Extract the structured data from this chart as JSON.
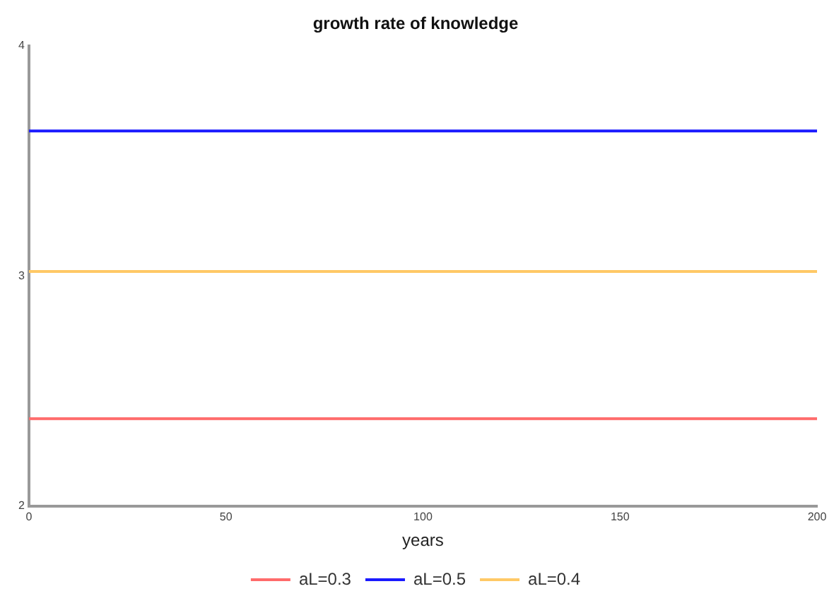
{
  "chart_data": {
    "type": "line",
    "title": "growth rate of knowledge",
    "xlabel": "years",
    "x": [
      0,
      200
    ],
    "series": [
      {
        "name": "aL=0.3",
        "color": "#ff6b6b",
        "values": [
          2.38,
          2.38
        ]
      },
      {
        "name": "aL=0.5",
        "color": "#1a1aff",
        "values": [
          3.63,
          3.63
        ]
      },
      {
        "name": "aL=0.4",
        "color": "#ffc966",
        "values": [
          3.02,
          3.02
        ]
      }
    ],
    "xlim": [
      0,
      200
    ],
    "xticks": [
      0,
      50,
      100,
      150,
      200
    ],
    "ylim": [
      2,
      4
    ],
    "yticks": [
      2,
      3,
      4
    ],
    "grid": false,
    "legend": "bottom",
    "marker": "none"
  }
}
